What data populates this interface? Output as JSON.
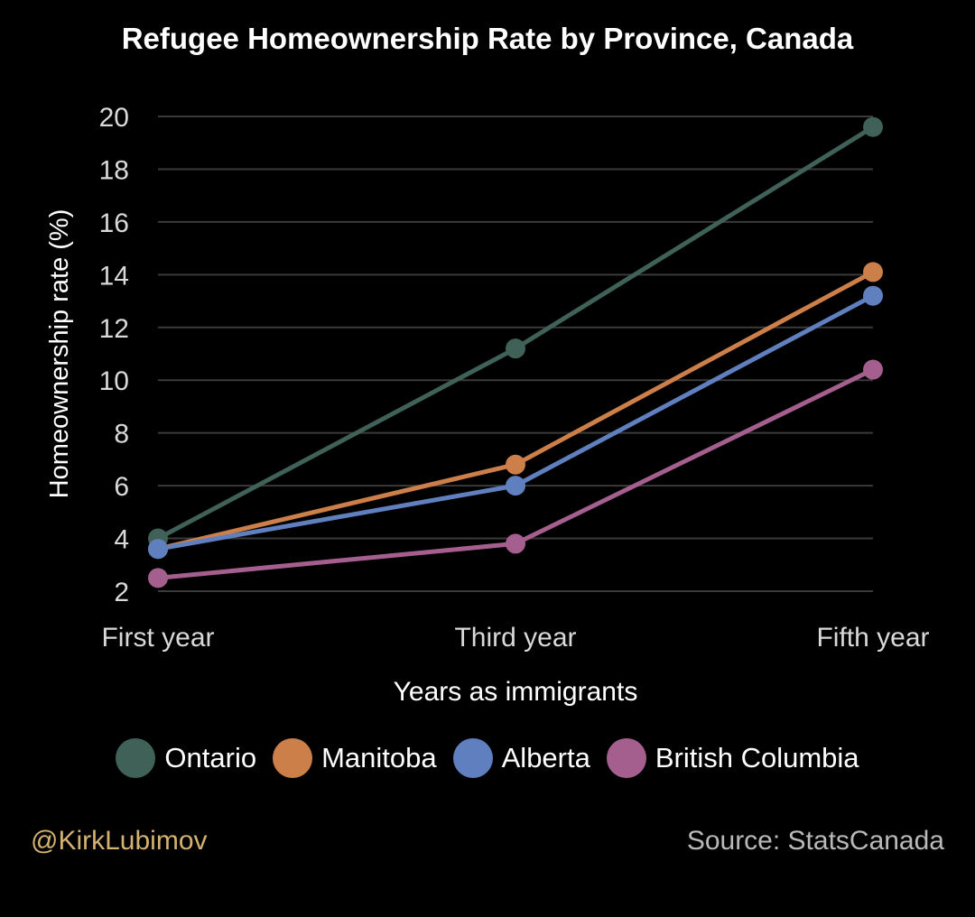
{
  "chart_data": {
    "type": "line",
    "title": "Refugee Homeownership Rate by Province, Canada",
    "xlabel": "Years as immigrants",
    "ylabel": "Homeownership rate (%)",
    "categories": [
      "First year",
      "Third year",
      "Fifth year"
    ],
    "ylim": [
      2,
      20
    ],
    "yticks": [
      "2",
      "4",
      "6",
      "8",
      "10",
      "12",
      "14",
      "16",
      "18",
      "20"
    ],
    "grid": true,
    "legend_position": "bottom",
    "series": [
      {
        "name": "Ontario",
        "color": "#3f6157",
        "values": [
          4.0,
          11.2,
          19.6
        ]
      },
      {
        "name": "Manitoba",
        "color": "#cd7f4a",
        "values": [
          3.6,
          6.8,
          14.1
        ]
      },
      {
        "name": "Alberta",
        "color": "#5f7fbf",
        "values": [
          3.6,
          6.0,
          13.2
        ]
      },
      {
        "name": "British Columbia",
        "color": "#a55f8f",
        "values": [
          2.5,
          3.8,
          10.4
        ]
      }
    ]
  },
  "footer": {
    "credit": "@KirkLubimov",
    "source": "Source: StatsCanada"
  },
  "colors": {
    "background": "#000000",
    "grid": "#3a3a3a",
    "tick_text": "#d9d9d9",
    "credit": "#d4b26f"
  }
}
